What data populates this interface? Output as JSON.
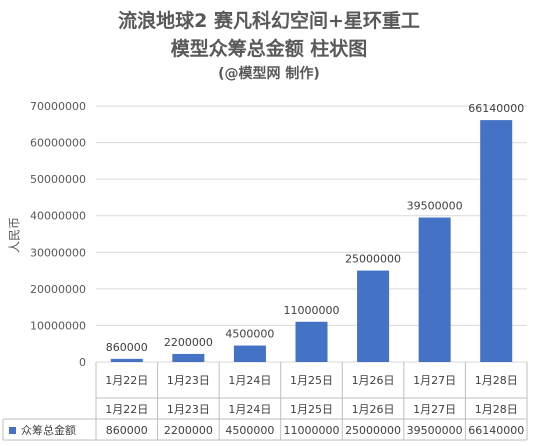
{
  "chart_data": {
    "type": "bar",
    "title": "流浪地球2 赛凡科幻空间+星环重工",
    "title_line2": "模型众筹总金额 柱状图",
    "subtitle": "(@模型网 制作)",
    "xlabel": "",
    "ylabel": "人民币",
    "categories": [
      "1月22日",
      "1月23日",
      "1月24日",
      "1月25日",
      "1月26日",
      "1月27日",
      "1月28日"
    ],
    "series": [
      {
        "name": "众筹总金额",
        "values": [
          860000,
          2200000,
          4500000,
          11000000,
          25000000,
          39500000,
          66140000
        ],
        "color": "#4472C4"
      }
    ],
    "ylim": [
      0,
      70000000
    ],
    "yticks": [
      0,
      10000000,
      20000000,
      30000000,
      40000000,
      50000000,
      60000000,
      70000000
    ],
    "grid": true,
    "legend": "in-table",
    "data_table": true
  }
}
